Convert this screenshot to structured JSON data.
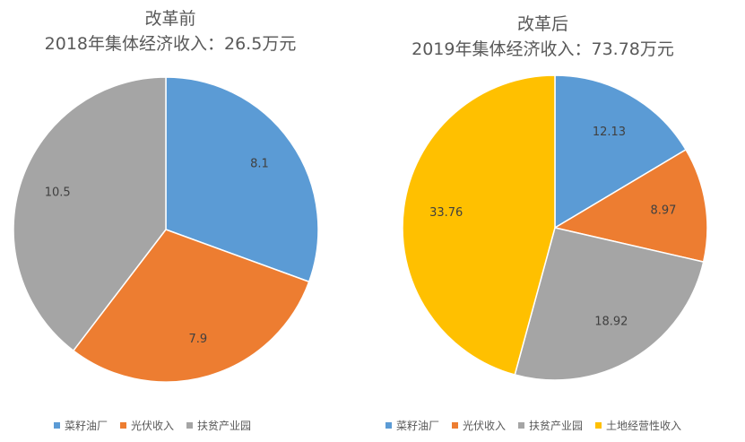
{
  "chart_data": [
    {
      "type": "pie",
      "title": "改革前",
      "subtitle": "2018年集体经济收入：26.5万元",
      "categories": [
        "菜籽油厂",
        "光伏收入",
        "扶贫产业园"
      ],
      "values": [
        8.1,
        7.9,
        10.5
      ],
      "value_labels": [
        "8.1",
        "7.9",
        "10.5"
      ],
      "colors": [
        "#5B9BD5",
        "#ED7D31",
        "#A5A5A5"
      ],
      "legend_position": "bottom"
    },
    {
      "type": "pie",
      "title": "改革后",
      "subtitle": "2019年集体经济收入：73.78万元",
      "categories": [
        "菜籽油厂",
        "光伏收入",
        "扶贫产业园",
        "土地经营性收入"
      ],
      "values": [
        12.13,
        8.97,
        18.92,
        33.76
      ],
      "value_labels": [
        "12.13",
        "8.97",
        "18.92",
        "33.76"
      ],
      "colors": [
        "#5B9BD5",
        "#ED7D31",
        "#A5A5A5",
        "#FFC000"
      ],
      "legend_position": "bottom"
    }
  ]
}
